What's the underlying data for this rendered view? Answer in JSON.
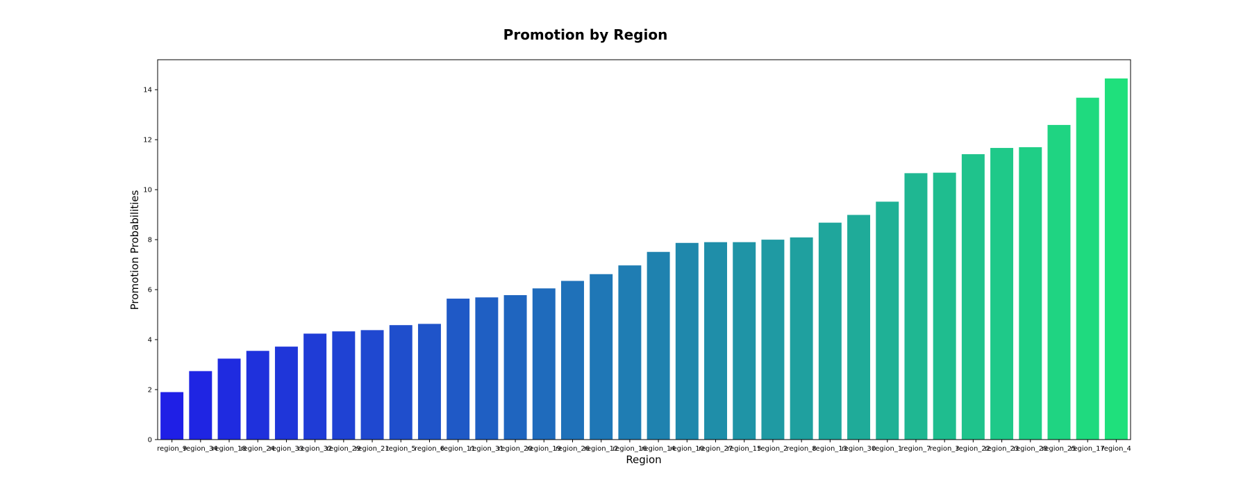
{
  "chart_data": {
    "type": "bar",
    "title": "Promotion by Region",
    "xlabel": "Region",
    "ylabel": "Promotion Probabilities",
    "categories": [
      "region_9",
      "region_34",
      "region_18",
      "region_24",
      "region_33",
      "region_32",
      "region_29",
      "region_21",
      "region_5",
      "region_6",
      "region_11",
      "region_31",
      "region_20",
      "region_19",
      "region_26",
      "region_12",
      "region_16",
      "region_14",
      "region_10",
      "region_27",
      "region_15",
      "region_2",
      "region_8",
      "region_13",
      "region_30",
      "region_1",
      "region_7",
      "region_3",
      "region_22",
      "region_23",
      "region_28",
      "region_25",
      "region_17",
      "region_4"
    ],
    "values": [
      1.9,
      2.74,
      3.24,
      3.55,
      3.72,
      4.24,
      4.33,
      4.38,
      4.58,
      4.63,
      5.64,
      5.69,
      5.78,
      6.05,
      6.35,
      6.62,
      6.97,
      7.51,
      7.87,
      7.9,
      7.9,
      8.0,
      8.09,
      8.68,
      8.99,
      9.52,
      10.66,
      10.68,
      11.42,
      11.67,
      11.7,
      12.59,
      13.68,
      14.45
    ],
    "ylim": [
      0,
      15.2
    ],
    "yticks": [
      0,
      2,
      4,
      6,
      8,
      10,
      12,
      14
    ],
    "color_start": "#1f1fe6",
    "color_end": "#1fe07c",
    "grid": false,
    "legend": "none"
  }
}
